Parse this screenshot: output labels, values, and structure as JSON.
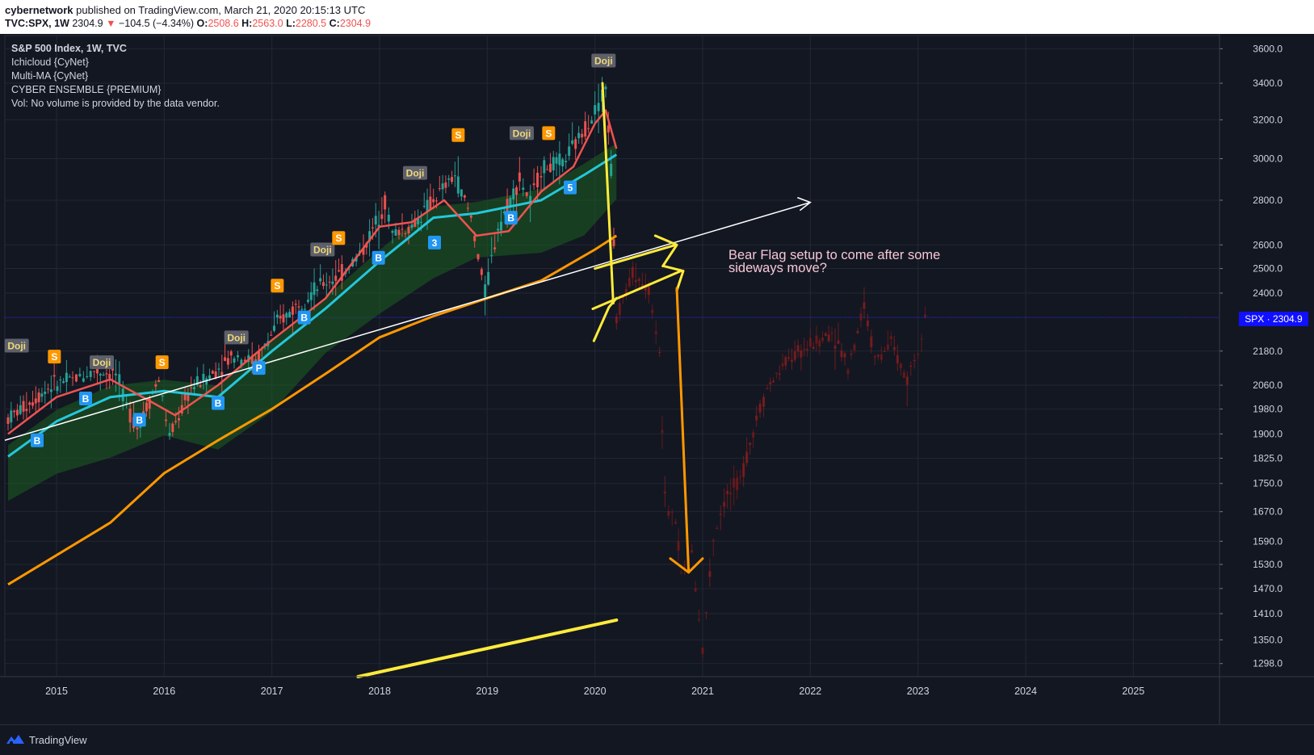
{
  "header": {
    "author": "cybernetwork",
    "published_text": "published on TradingView.com, March 21, 2020 20:15:13 UTC",
    "symbol_line": "TVC:SPX, 1W",
    "last": "2304.9",
    "change": "−104.5 (−4.34%)",
    "open_label": "O:",
    "open": "2508.6",
    "high_label": "H:",
    "high": "2563.0",
    "low_label": "L:",
    "low": "2280.5",
    "close_label": "C:",
    "close": "2304.9"
  },
  "legend": {
    "title": "S&P 500 Index, 1W, TVC",
    "items": [
      "Ichicloud {CyNet}",
      "Multi-MA {CyNet}",
      "CYBER ENSEMBLE {PREMIUM}",
      "Vol: No volume is provided by the data vendor."
    ]
  },
  "annotation": {
    "line1": "Bear Flag setup to come after some",
    "line2": "sideways move?"
  },
  "last_price_label": "SPX · 2304.9",
  "footer": {
    "brand": "TradingView"
  },
  "colors": {
    "background": "#131722",
    "ma_fast": "#ef5350",
    "ma_mid": "#26c6da",
    "ma_slow": "#ff9800",
    "trend_white": "#ffffff",
    "flag_yellow": "#ffeb3b",
    "projection_orange": "#ff9800",
    "cloud": "#1b5e20",
    "price_marker": "#1010ff"
  },
  "chart_data": {
    "type": "line",
    "title": "S&P 500 Index, 1W, TVC",
    "x_ticks": [
      "2015",
      "2016",
      "2017",
      "2018",
      "2019",
      "2020",
      "2021",
      "2022",
      "2023",
      "2024",
      "2025"
    ],
    "y_ticks": [
      "3600.0",
      "3400.0",
      "3200.0",
      "3000.0",
      "2800.0",
      "2600.0",
      "2500.0",
      "2400.0",
      "2180.0",
      "2060.0",
      "1980.0",
      "1900.0",
      "1825.0",
      "1750.0",
      "1670.0",
      "1590.0",
      "1530.0",
      "1470.0",
      "1410.0",
      "1350.0",
      "1298.0"
    ],
    "y_scale": "log",
    "ylim": [
      1270,
      3680
    ],
    "xlim": [
      2014.52,
      2025.8
    ],
    "grid": true,
    "series": [
      {
        "role": "price",
        "x": [
          2014.55,
          2014.75,
          2014.95,
          2015.15,
          2015.35,
          2015.55,
          2015.65,
          2015.75,
          2015.95,
          2016.05,
          2016.25,
          2016.45,
          2016.65,
          2016.85,
          2017.05,
          2017.25,
          2017.45,
          2017.65,
          2017.85,
          2018.05,
          2018.12,
          2018.3,
          2018.5,
          2018.7,
          2018.85,
          2018.98,
          2019.1,
          2019.3,
          2019.4,
          2019.5,
          2019.7,
          2019.85,
          2020.0,
          2020.1,
          2020.15,
          2020.2
        ],
        "y": [
          1950,
          2000,
          2060,
          2080,
          2110,
          2100,
          1990,
          1920,
          2080,
          1890,
          2050,
          2100,
          2170,
          2140,
          2280,
          2360,
          2430,
          2480,
          2580,
          2790,
          2650,
          2680,
          2800,
          2920,
          2720,
          2400,
          2680,
          2900,
          2790,
          2950,
          2980,
          3100,
          3250,
          3380,
          2950,
          2304.9
        ]
      },
      {
        "role": "projection",
        "x": [
          2020.2,
          2020.35,
          2020.5,
          2020.6,
          2020.65,
          2020.75,
          2020.8,
          2020.9,
          2021.0,
          2021.1,
          2021.2,
          2021.35,
          2021.5,
          2021.6,
          2021.8,
          2022.0,
          2022.2,
          2022.35,
          2022.5,
          2022.6,
          2022.75,
          2022.9,
          2023.0,
          2023.1
        ],
        "y": [
          2304.9,
          2480,
          2420,
          2180,
          1700,
          1640,
          1500,
          1560,
          1330,
          1600,
          1700,
          1760,
          1950,
          2050,
          2150,
          2200,
          2250,
          2130,
          2350,
          2150,
          2200,
          2080,
          2200,
          2400
        ]
      },
      {
        "role": "ma-fast",
        "x": [
          2014.55,
          2015.0,
          2015.5,
          2015.9,
          2016.1,
          2016.5,
          2017.0,
          2017.5,
          2018.0,
          2018.3,
          2018.6,
          2018.9,
          2019.2,
          2019.5,
          2019.8,
          2020.0,
          2020.1,
          2020.2
        ],
        "y": [
          1900,
          2020,
          2080,
          2000,
          1960,
          2060,
          2220,
          2380,
          2680,
          2700,
          2800,
          2640,
          2660,
          2840,
          2960,
          3180,
          3250,
          3050
        ]
      },
      {
        "role": "ma-mid",
        "x": [
          2014.55,
          2015.0,
          2015.5,
          2016.0,
          2016.5,
          2017.0,
          2017.5,
          2018.0,
          2018.5,
          2018.9,
          2019.5,
          2019.9,
          2020.2
        ],
        "y": [
          1830,
          1940,
          2020,
          2040,
          2020,
          2180,
          2340,
          2530,
          2720,
          2740,
          2800,
          2920,
          3020
        ]
      },
      {
        "role": "ma-slow",
        "x": [
          2014.55,
          2015.5,
          2016.0,
          2016.5,
          2017.0,
          2017.5,
          2018.0,
          2018.5,
          2019.0,
          2019.5,
          2020.0,
          2020.2
        ],
        "y": [
          1480,
          1640,
          1780,
          1880,
          1980,
          2100,
          2230,
          2310,
          2380,
          2450,
          2580,
          2640
        ]
      }
    ],
    "annotations": [
      {
        "type": "trendline",
        "from": [
          2014.52,
          1880
        ],
        "to": [
          2022.0,
          2790
        ]
      },
      {
        "type": "text",
        "text": "Bear Flag setup to come after some sideways move?"
      }
    ],
    "markers": [
      "Doji",
      "S",
      "B",
      "P",
      "5",
      "3"
    ]
  }
}
